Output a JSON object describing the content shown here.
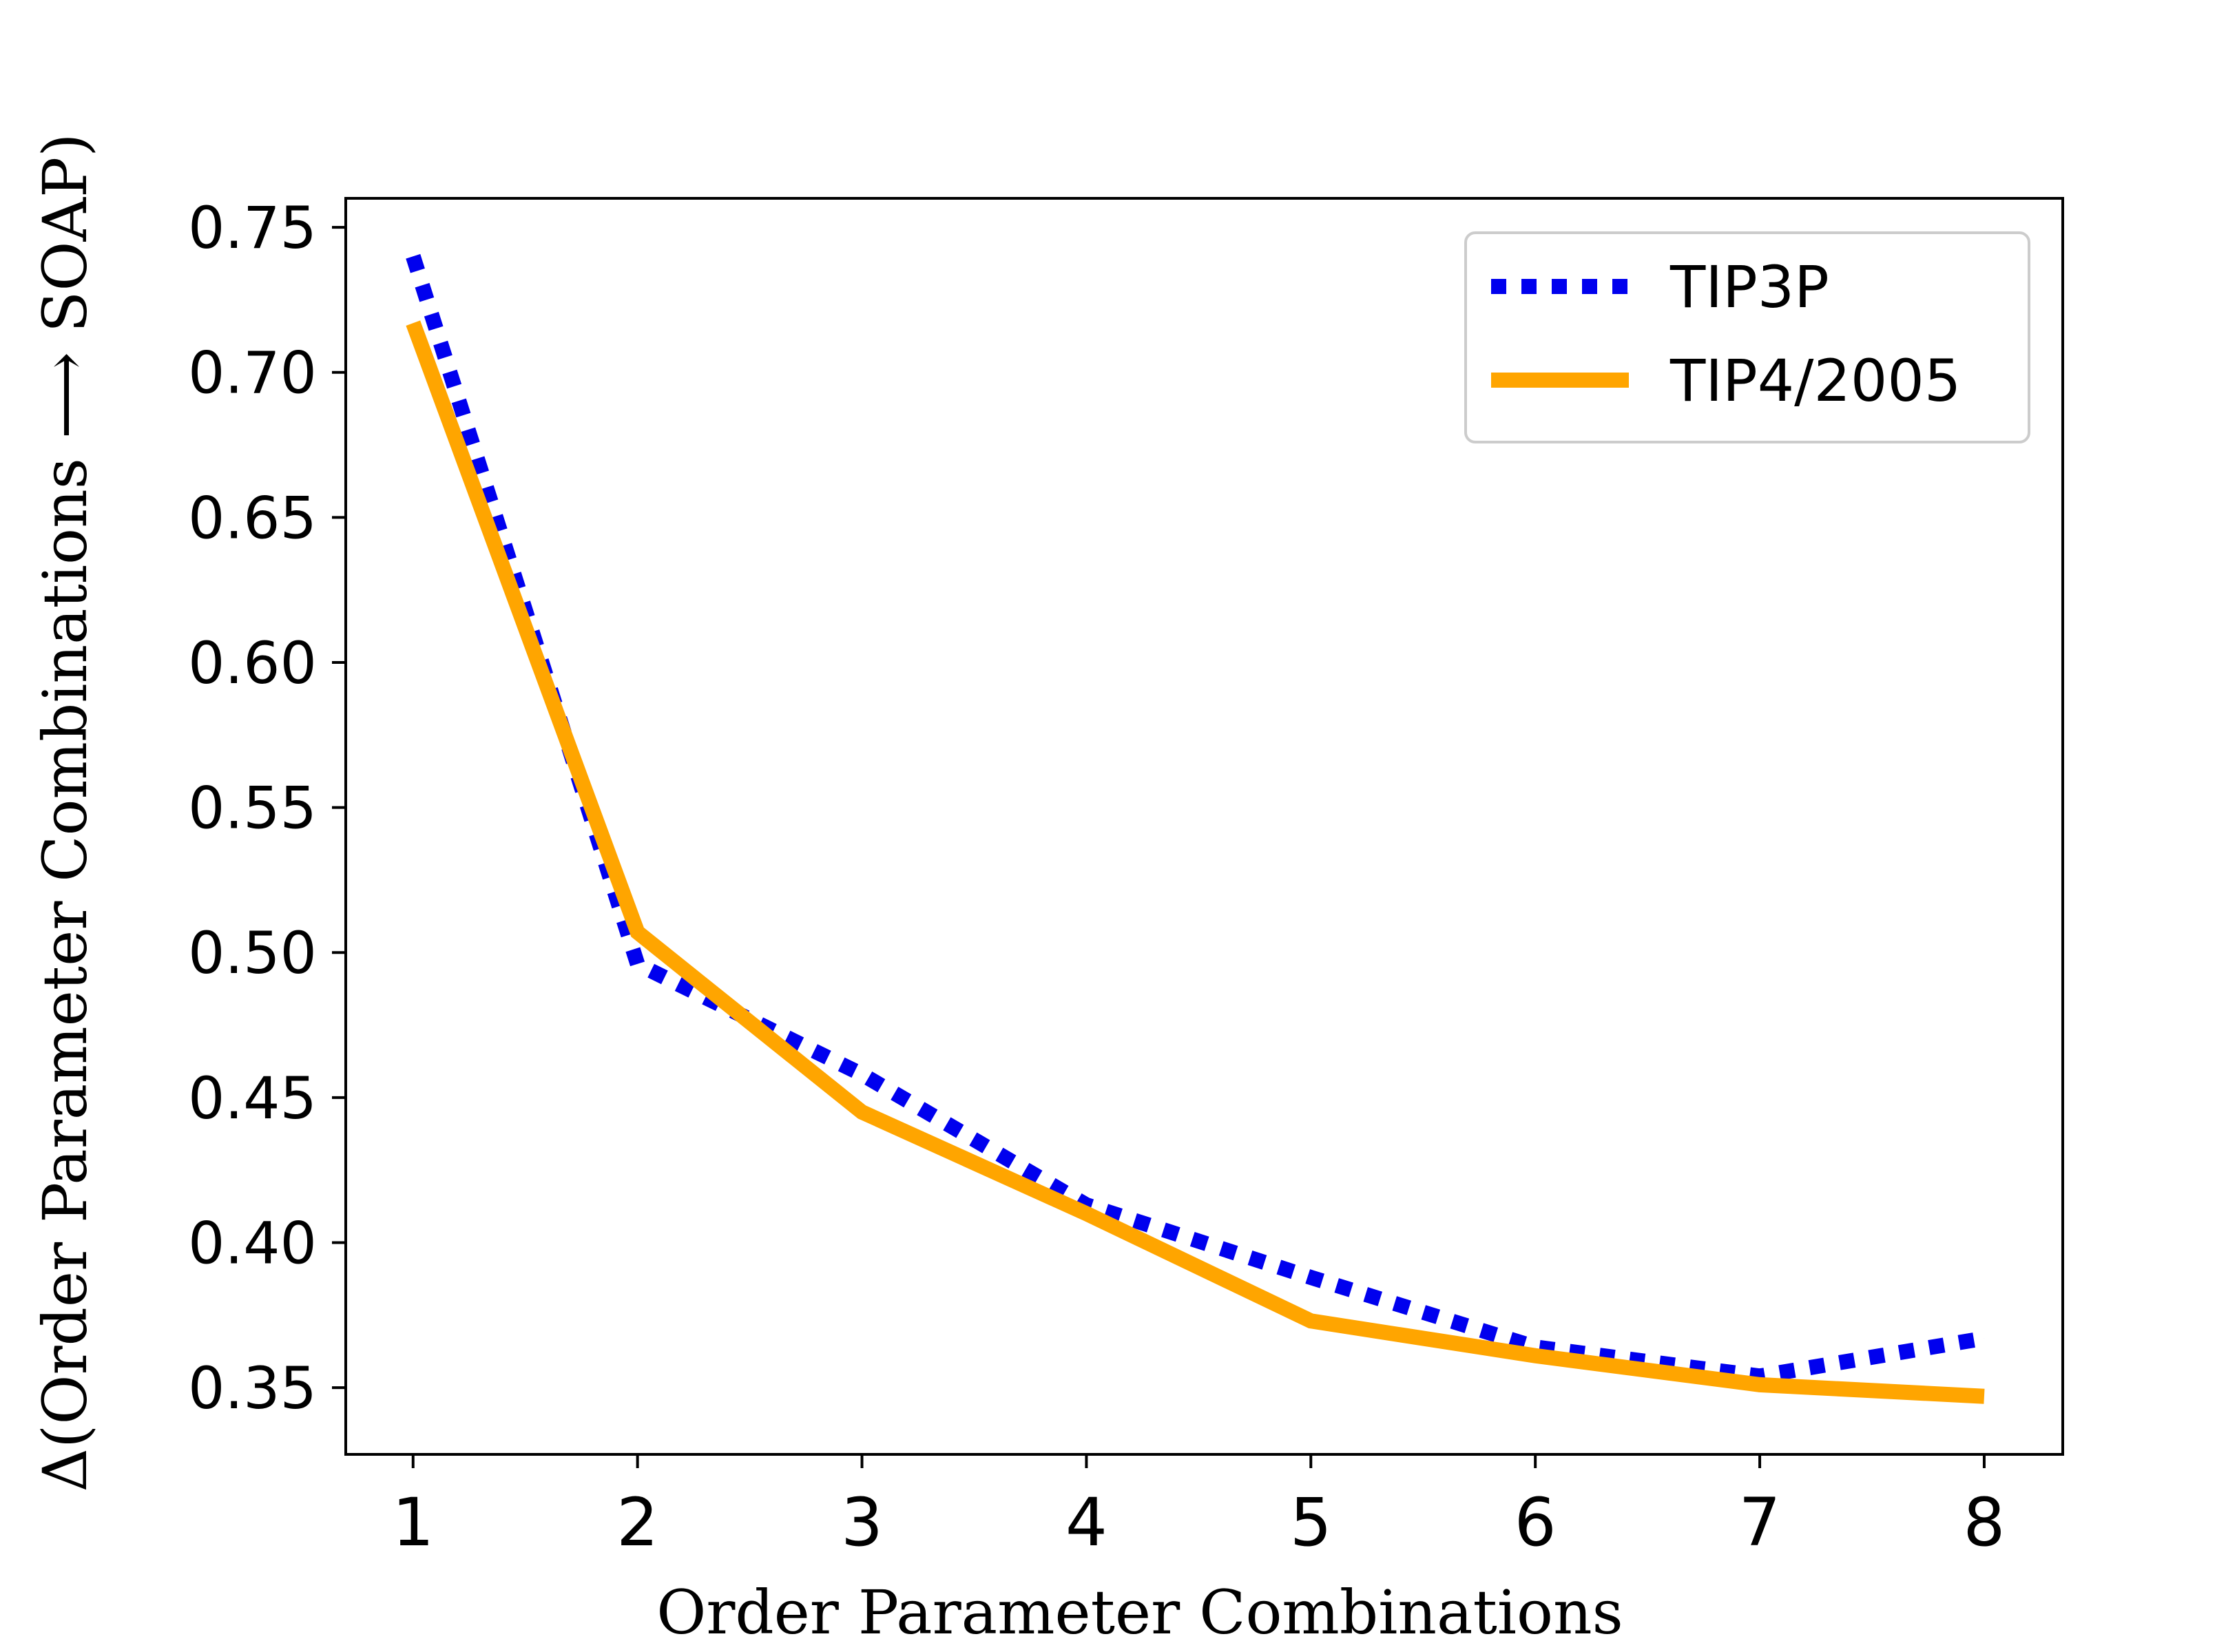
{
  "chart_data": {
    "type": "line",
    "title": "",
    "xlabel": "Order Parameter Combinations",
    "ylabel": "Δ(Order Parameter Combinations ⟶ SOAP)",
    "x": [
      1,
      2,
      3,
      4,
      5,
      6,
      7,
      8
    ],
    "xlim": [
      0.7,
      8.35
    ],
    "ylim": [
      0.327,
      0.76
    ],
    "xticks": [
      "1",
      "2",
      "3",
      "4",
      "5",
      "6",
      "7",
      "8"
    ],
    "yticks": [
      "0.35",
      "0.40",
      "0.45",
      "0.50",
      "0.55",
      "0.60",
      "0.65",
      "0.70",
      "0.75"
    ],
    "grid": false,
    "legend_position": "upper right",
    "series": [
      {
        "name": "TIP3P",
        "values": [
          0.74,
          0.496,
          0.458,
          0.413,
          0.388,
          0.364,
          0.354,
          0.367
        ],
        "color": "#0000ee",
        "style": "dotted"
      },
      {
        "name": "TIP4/2005",
        "values": [
          0.717,
          0.507,
          0.445,
          0.41,
          0.373,
          0.361,
          0.351,
          0.347
        ],
        "color": "#ffa500",
        "style": "solid"
      }
    ]
  }
}
